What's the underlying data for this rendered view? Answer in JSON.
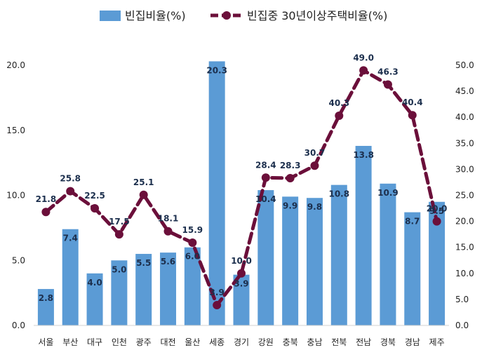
{
  "chart_data": {
    "type": "bar",
    "categories": [
      "서울",
      "부산",
      "대구",
      "인천",
      "광주",
      "대전",
      "울산",
      "세종",
      "경기",
      "강원",
      "충북",
      "충남",
      "전북",
      "전남",
      "경북",
      "경남",
      "제주"
    ],
    "series": [
      {
        "name": "빈집비율(%)",
        "type": "bar",
        "axis": "left",
        "color": "#5b9bd5",
        "values": [
          2.8,
          7.4,
          4.0,
          5.0,
          5.5,
          5.6,
          6.0,
          20.3,
          3.9,
          10.4,
          9.9,
          9.8,
          10.8,
          13.8,
          10.9,
          8.7,
          9.5
        ],
        "labels": [
          "2.8",
          "7.4",
          "4.0",
          "5.0",
          "5.5",
          "5.6",
          "6.0",
          "20.3",
          "3.9",
          "10.4",
          "9.9",
          "9.8",
          "10.8",
          "13.8",
          "10.9",
          "8.7",
          "9.5"
        ]
      },
      {
        "name": "빈집중 30년이상주택비율(%)",
        "type": "line",
        "axis": "right",
        "style": "dashed",
        "color": "#6b0f3a",
        "values": [
          21.8,
          25.8,
          22.5,
          17.5,
          25.1,
          18.1,
          15.9,
          3.9,
          10.0,
          28.4,
          28.3,
          30.7,
          40.3,
          49.0,
          46.3,
          40.4,
          20.0
        ],
        "labels": [
          "21.8",
          "25.8",
          "22.5",
          "17.5",
          "25.1",
          "18.1",
          "15.9",
          "3.9",
          "10.0",
          "28.4",
          "28.3",
          "30.7",
          "40.3",
          "49.0",
          "46.3",
          "40.4",
          "20.0"
        ]
      }
    ],
    "y_left": {
      "ylim": [
        0,
        20
      ],
      "ticks": [
        "0.0",
        "5.0",
        "10.0",
        "15.0",
        "20.0"
      ]
    },
    "y_right": {
      "ylim": [
        0,
        50
      ],
      "ticks": [
        "0.0",
        "5.0",
        "10.0",
        "15.0",
        "20.0",
        "25.0",
        "30.0",
        "35.0",
        "40.0",
        "45.0",
        "50.0"
      ]
    },
    "grid": false,
    "legend": "top"
  }
}
